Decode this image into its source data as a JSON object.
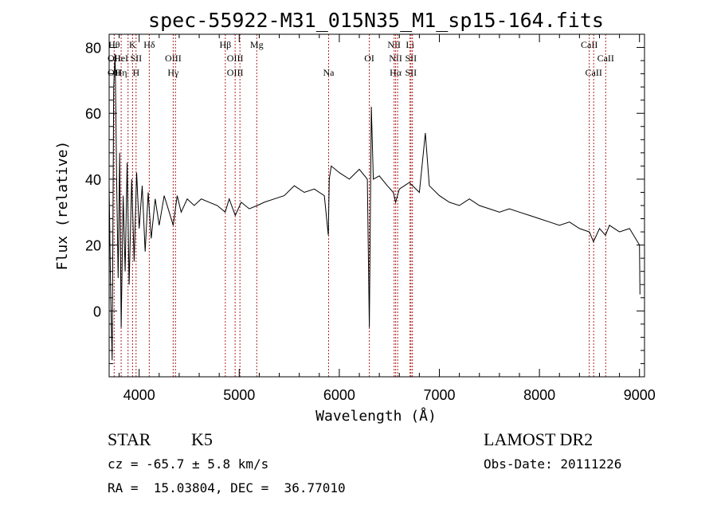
{
  "chart_data": {
    "type": "line",
    "title": "spec-55922-M31_015N35_M1_sp15-164.fits",
    "xlabel": "Wavelength (Å)",
    "ylabel": "Flux (relative)",
    "xlim": [
      3700,
      9050
    ],
    "ylim": [
      -20,
      84
    ],
    "x_ticks": [
      4000,
      5000,
      6000,
      7000,
      8000,
      9000
    ],
    "y_ticks": [
      0,
      20,
      40,
      60,
      80
    ],
    "grid": false,
    "series": [
      {
        "x": [
          3700,
          3715,
          3730,
          3745,
          3760,
          3775,
          3790,
          3805,
          3820,
          3840,
          3860,
          3880,
          3900,
          3925,
          3950,
          3975,
          4000,
          4030,
          4060,
          4090,
          4120,
          4160,
          4200,
          4250,
          4300,
          4340,
          4380,
          4420,
          4480,
          4550,
          4620,
          4700,
          4780,
          4860,
          4900,
          4960,
          5020,
          5100,
          5180,
          5250,
          5350,
          5450,
          5550,
          5650,
          5750,
          5850,
          5890,
          5900,
          5920,
          6000,
          6100,
          6200,
          6280,
          6300,
          6320,
          6340,
          6400,
          6480,
          6540,
          6563,
          6600,
          6700,
          6800,
          6860,
          6900,
          7000,
          7100,
          7200,
          7300,
          7400,
          7500,
          7600,
          7700,
          7800,
          7900,
          8000,
          8100,
          8200,
          8300,
          8400,
          8500,
          8540,
          8600,
          8660,
          8700,
          8800,
          8900,
          8960,
          9000,
          9005
        ],
        "values": [
          38,
          5,
          -15,
          68,
          78,
          40,
          10,
          48,
          -5,
          35,
          12,
          45,
          8,
          40,
          15,
          42,
          25,
          38,
          18,
          36,
          22,
          34,
          26,
          35,
          30,
          26,
          35,
          30,
          34,
          32,
          34,
          33,
          32,
          30,
          34,
          29,
          33,
          31,
          32,
          33,
          34,
          35,
          38,
          36,
          37,
          35,
          23,
          40,
          44,
          42,
          40,
          43,
          40,
          -5,
          62,
          40,
          41,
          38,
          36,
          33,
          37,
          39,
          36,
          54,
          38,
          35,
          33,
          32,
          34,
          32,
          31,
          30,
          31,
          30,
          29,
          28,
          27,
          26,
          27,
          25,
          24,
          21,
          25,
          23,
          26,
          24,
          25,
          22,
          20,
          5
        ]
      }
    ],
    "lines": [
      {
        "x": 3750,
        "labels": [
          "Hθ",
          "OII",
          "OII"
        ]
      },
      {
        "x": 3820,
        "labels": [
          "",
          "HeI",
          "Hη"
        ]
      },
      {
        "x": 3889,
        "labels": [
          "",
          "",
          ""
        ]
      },
      {
        "x": 3934,
        "labels": [
          "K",
          "",
          ""
        ]
      },
      {
        "x": 3969,
        "labels": [
          "",
          "SII",
          "H"
        ]
      },
      {
        "x": 4101,
        "labels": [
          "Hδ",
          "",
          ""
        ]
      },
      {
        "x": 4340,
        "labels": [
          "",
          "OIII",
          "Hγ"
        ]
      },
      {
        "x": 4363,
        "labels": [
          "",
          "",
          ""
        ]
      },
      {
        "x": 4861,
        "labels": [
          "Hβ",
          "",
          ""
        ]
      },
      {
        "x": 4959,
        "labels": [
          "",
          "OIII",
          "OIII"
        ]
      },
      {
        "x": 5007,
        "labels": [
          "",
          "",
          ""
        ]
      },
      {
        "x": 5175,
        "labels": [
          "Mg",
          "",
          ""
        ]
      },
      {
        "x": 5893,
        "labels": [
          "",
          "",
          "Na"
        ]
      },
      {
        "x": 6300,
        "labels": [
          "",
          "OI",
          ""
        ]
      },
      {
        "x": 6548,
        "labels": [
          "NII",
          "",
          ""
        ]
      },
      {
        "x": 6563,
        "labels": [
          "",
          "NII",
          "Hα"
        ]
      },
      {
        "x": 6583,
        "labels": [
          "",
          "",
          ""
        ]
      },
      {
        "x": 6707,
        "labels": [
          "Li",
          "",
          ""
        ]
      },
      {
        "x": 6716,
        "labels": [
          "",
          "SII",
          "SII"
        ]
      },
      {
        "x": 6731,
        "labels": [
          "",
          "",
          ""
        ]
      },
      {
        "x": 8498,
        "labels": [
          "CaII",
          "",
          ""
        ]
      },
      {
        "x": 8542,
        "labels": [
          "",
          "",
          "CaII"
        ]
      },
      {
        "x": 8662,
        "labels": [
          "",
          "CaII",
          ""
        ]
      }
    ]
  },
  "footer": {
    "class_label": "STAR",
    "subclass": "K5",
    "survey": "LAMOST DR2",
    "redshift": "cz = -65.7 ± 5.8 km/s",
    "obs_date": "Obs-Date: 20111226",
    "coords": "RA =  15.03804, DEC =  36.77010"
  }
}
